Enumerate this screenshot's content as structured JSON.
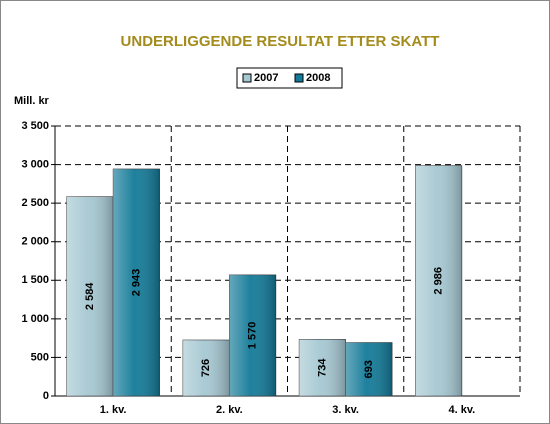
{
  "chart_data": {
    "type": "bar",
    "title": "UNDERLIGGENDE RESULTAT ETTER SKATT",
    "y_axis_label": "Mill. kr",
    "categories": [
      "1. kv.",
      "2. kv.",
      "3. kv.",
      "4. kv."
    ],
    "series": [
      {
        "name": "2007",
        "color": "#a6c8d2",
        "values": [
          2584,
          726,
          734,
          2986
        ],
        "value_labels": [
          "2 584",
          "726",
          "734",
          "2 986"
        ]
      },
      {
        "name": "2008",
        "color": "#137a98",
        "values": [
          2943,
          1570,
          693,
          null
        ],
        "value_labels": [
          "2 943",
          "1 570",
          "693",
          null
        ]
      }
    ],
    "ylim": [
      0,
      3500
    ],
    "yticks": [
      0,
      500,
      {
        "value": 1000,
        "label": "1 000"
      },
      {
        "value": 1500,
        "label": "1 500"
      },
      {
        "value": 2000,
        "label": "2 000"
      },
      {
        "value": 2500,
        "label": "2 500"
      },
      {
        "value": 3000,
        "label": "3 000"
      },
      {
        "value": 3500,
        "label": "3 500"
      }
    ],
    "grid": true,
    "legend": "top"
  }
}
